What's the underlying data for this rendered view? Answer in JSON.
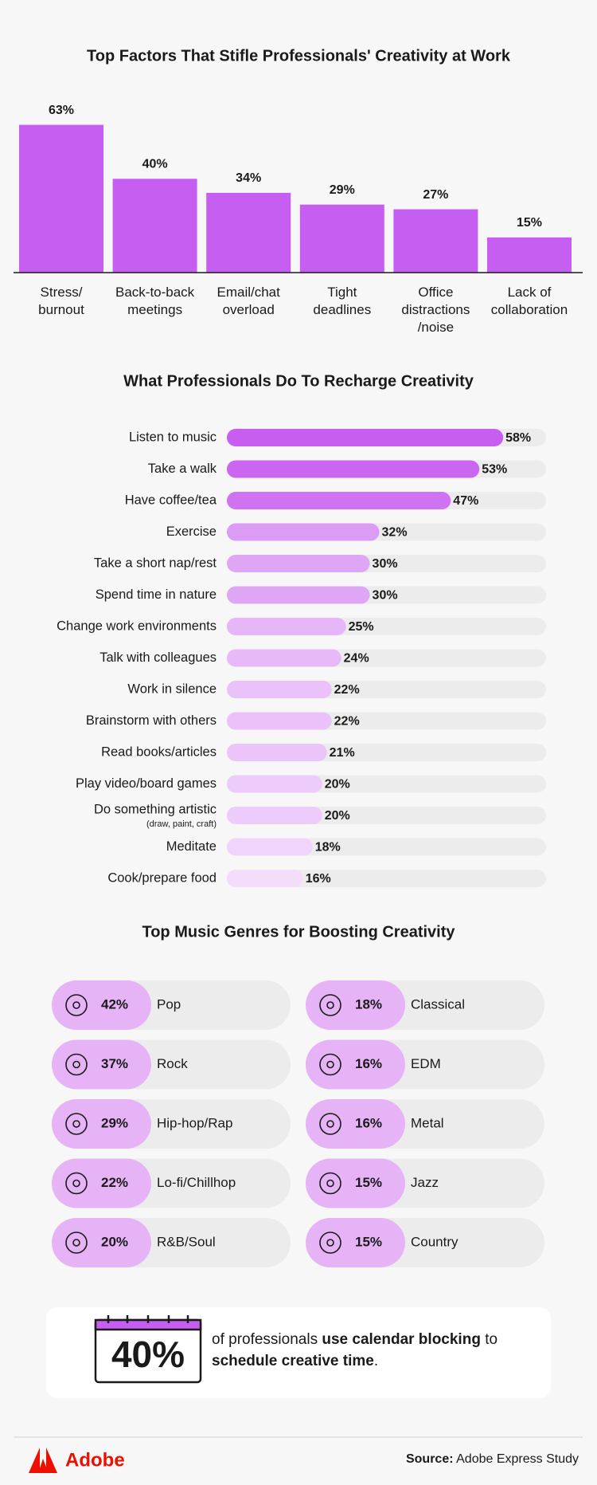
{
  "chart_data": [
    {
      "type": "bar",
      "title": "Top Factors That Stifle Professionals' Creativity at Work",
      "categories": [
        "Stress/\nburnout",
        "Back-to-back\nmeetings",
        "Email/chat\noverload",
        "Tight\ndeadlines",
        "Office\ndistractions\n/noise",
        "Lack of\ncollaboration"
      ],
      "values": [
        63,
        40,
        34,
        29,
        27,
        15
      ],
      "value_labels": [
        "63%",
        "40%",
        "34%",
        "29%",
        "27%",
        "15%"
      ],
      "color": "#c65ef2",
      "ylim": [
        0,
        70
      ]
    },
    {
      "type": "hbar",
      "title": "What Professionals Do To Recharge Creativity",
      "categories": [
        "Listen to music",
        "Take a walk",
        "Have coffee/tea",
        "Exercise",
        "Take a short nap/rest",
        "Spend time in nature",
        "Change work environments",
        "Talk with colleagues",
        "Work in silence",
        "Brainstorm with others",
        "Read books/articles",
        "Play video/board games",
        "Do something artistic",
        "Meditate",
        "Cook/prepare food"
      ],
      "category_notes": [
        null,
        null,
        null,
        null,
        null,
        null,
        null,
        null,
        null,
        null,
        null,
        null,
        "(draw, paint, craft)",
        null,
        null
      ],
      "values": [
        58,
        53,
        47,
        32,
        30,
        30,
        25,
        24,
        22,
        22,
        21,
        20,
        20,
        18,
        16
      ],
      "value_labels": [
        "58%",
        "53%",
        "47%",
        "32%",
        "30%",
        "30%",
        "25%",
        "24%",
        "22%",
        "22%",
        "21%",
        "20%",
        "20%",
        "18%",
        "16%"
      ],
      "colors": [
        "#c75ef0",
        "#cb66f1",
        "#d073f2",
        "#dc9cf5",
        "#e0a6f6",
        "#e0a6f6",
        "#e6b6f8",
        "#e7b9f8",
        "#eac1f9",
        "#eac1f9",
        "#ebc5f9",
        "#edcbfa",
        "#edcbfa",
        "#f0d4fb",
        "#f3ddfb"
      ],
      "track_color": "#ececec",
      "xlim": [
        0,
        67
      ]
    },
    {
      "type": "tiles",
      "title": "Top Music Genres for Boosting Creativity",
      "categories": [
        "Pop",
        "Rock",
        "Hip-hop/Rap",
        "Lo-fi/Chillhop",
        "R&B/Soul",
        "Classical",
        "EDM",
        "Metal",
        "Jazz",
        "Country"
      ],
      "values": [
        42,
        37,
        29,
        22,
        20,
        18,
        16,
        16,
        15,
        15
      ],
      "value_labels": [
        "42%",
        "37%",
        "29%",
        "22%",
        "20%",
        "18%",
        "16%",
        "16%",
        "15%",
        "15%"
      ],
      "columns": 2,
      "color": "#e6b3f7",
      "track_color": "#ececec"
    }
  ],
  "callout": {
    "stat": "40%",
    "text": [
      {
        "text": "of professionals ",
        "bold": false
      },
      {
        "text": "use calendar blocking",
        "bold": true
      },
      {
        "text": " to ",
        "bold": false
      },
      {
        "text": "schedule creative time",
        "bold": true
      },
      {
        "text": ".",
        "bold": false
      }
    ]
  },
  "footer": {
    "brand": "Adobe",
    "source_label": "Source:",
    "source": "Adobe Express Study"
  }
}
